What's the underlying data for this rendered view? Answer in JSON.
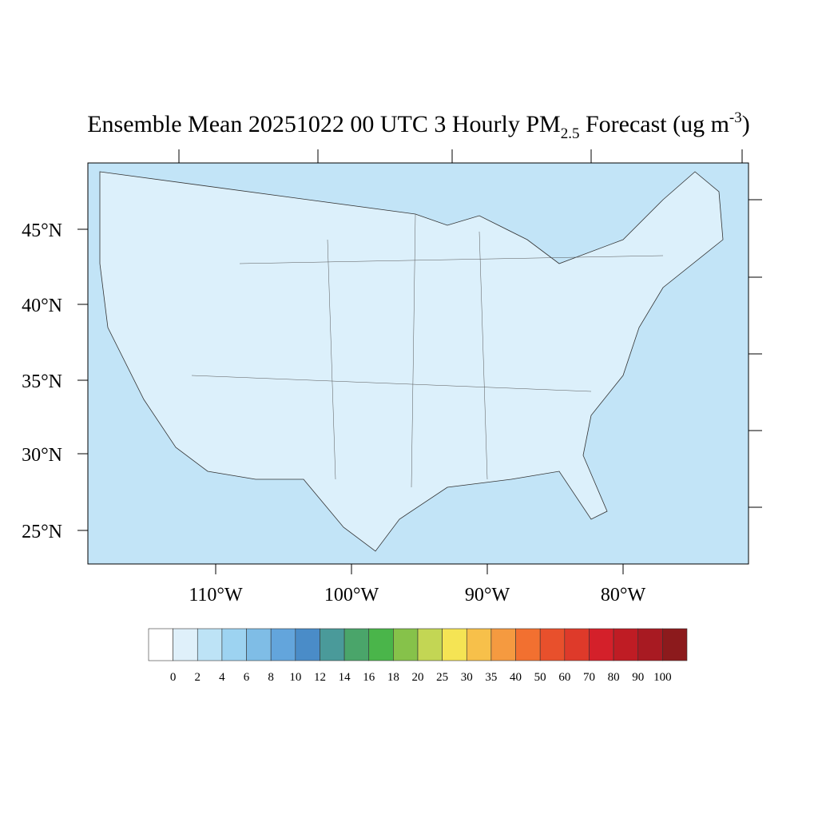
{
  "title": {
    "main": "Ensemble Mean 20251022 00 UTC 3 Hourly PM",
    "subscript": "2.5",
    "rest": " Forecast (ug m",
    "superscript": "-3",
    "close": ")"
  },
  "lat_labels": [
    "45°N",
    "40°N",
    "35°N",
    "30°N",
    "25°N"
  ],
  "lon_labels": [
    "110°W",
    "100°W",
    "90°W",
    "80°W"
  ],
  "colorbar": {
    "levels": [
      0,
      2,
      4,
      6,
      8,
      10,
      12,
      14,
      16,
      18,
      20,
      25,
      30,
      35,
      40,
      50,
      60,
      70,
      80,
      90,
      100
    ],
    "colors": [
      "#ffffff",
      "#dff0fa",
      "#bde3f6",
      "#9dd3f1",
      "#7fbde6",
      "#63a5dc",
      "#4a8cc8",
      "#4a9a9a",
      "#4aa56a",
      "#4ab54a",
      "#86c24a",
      "#c3d654",
      "#f5e454",
      "#f7c04a",
      "#f59a40",
      "#f27030",
      "#e8502c",
      "#de3a2a",
      "#d4202a",
      "#bf1c24",
      "#a81a22",
      "#8c1a1c"
    ]
  }
}
